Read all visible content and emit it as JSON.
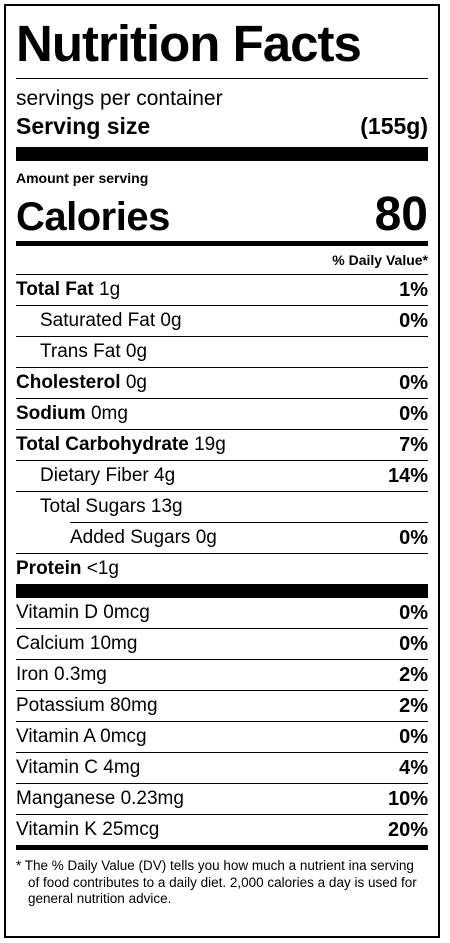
{
  "title": "Nutrition Facts",
  "servings_per_container": "servings per container",
  "serving_size": {
    "label": "Serving size",
    "value": "(155g)"
  },
  "amount_per_serving": "Amount per serving",
  "calories": {
    "label": "Calories",
    "value": "80"
  },
  "daily_value_header": "% Daily Value*",
  "nutrients": [
    {
      "name": "Total Fat",
      "amount": "1g",
      "dv": "1%"
    },
    {
      "name": "Saturated Fat",
      "amount": "0g",
      "dv": "0%"
    },
    {
      "name": "Trans Fat",
      "amount": "0g",
      "dv": ""
    },
    {
      "name": "Cholesterol",
      "amount": "0g",
      "dv": "0%"
    },
    {
      "name": "Sodium",
      "amount": "0mg",
      "dv": "0%"
    },
    {
      "name": "Total Carbohydrate",
      "amount": "19g",
      "dv": "7%"
    },
    {
      "name": "Dietary Fiber",
      "amount": "4g",
      "dv": "14%"
    },
    {
      "name": "Total Sugars",
      "amount": "13g",
      "dv": ""
    },
    {
      "name": "Added Sugars",
      "amount": "0g",
      "dv": "0%"
    },
    {
      "name": "Protein",
      "amount": "<1g",
      "dv": ""
    }
  ],
  "vitamins": [
    {
      "name": "Vitamin D",
      "amount": "0mcg",
      "dv": "0%"
    },
    {
      "name": "Calcium",
      "amount": "10mg",
      "dv": "0%"
    },
    {
      "name": "Iron",
      "amount": "0.3mg",
      "dv": "2%"
    },
    {
      "name": "Potassium",
      "amount": "80mg",
      "dv": "2%"
    },
    {
      "name": "Vitamin A",
      "amount": "0mcg",
      "dv": "0%"
    },
    {
      "name": "Vitamin C",
      "amount": "4mg",
      "dv": "4%"
    },
    {
      "name": "Manganese",
      "amount": "0.23mg",
      "dv": "10%"
    },
    {
      "name": "Vitamin K",
      "amount": "25mcg",
      "dv": "20%"
    }
  ],
  "footnote": "* The % Daily Value (DV) tells you how much a nutrient ina serving of food contributes to a daily diet. 2,000 calories a day is used for general nutrition advice."
}
